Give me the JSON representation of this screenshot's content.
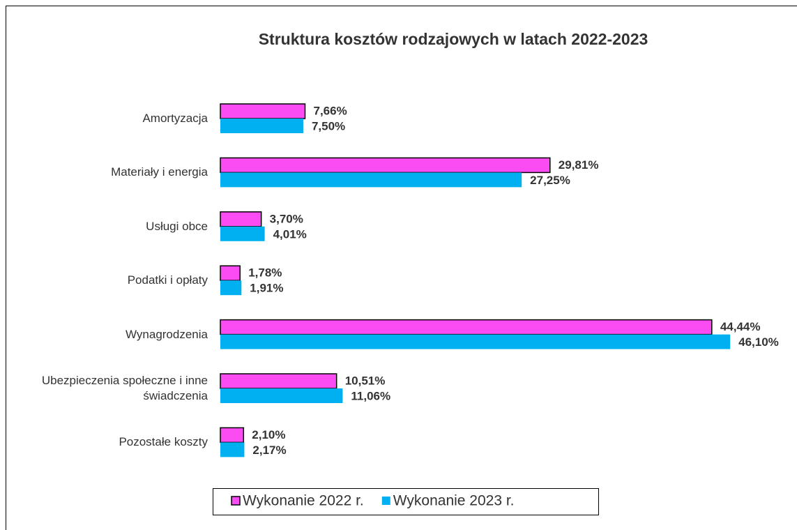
{
  "chart_data": {
    "type": "barh",
    "title": "Struktura kosztów rodzajowych w latach 2022-2023",
    "categories": [
      "Amortyzacja",
      "Materiały i energia",
      "Usługi obce",
      "Podatki i opłaty",
      "Wynagrodzenia",
      "Ubezpieczenia społeczne i inne świadczenia",
      "Pozostałe koszty"
    ],
    "series": [
      {
        "name": "Wykonanie 2022 r.",
        "color": "#fa4cf2",
        "values": [
          7.66,
          29.81,
          3.7,
          1.78,
          44.44,
          10.51,
          2.1
        ],
        "value_labels": [
          "7,66%",
          "29,81%",
          "3,70%",
          "1,78%",
          "44,44%",
          "10,51%",
          "2,10%"
        ]
      },
      {
        "name": "Wykonanie 2023 r.",
        "color": "#00b0f0",
        "values": [
          7.5,
          27.25,
          4.01,
          1.91,
          46.1,
          11.06,
          2.17
        ],
        "value_labels": [
          "7,50%",
          "27,25%",
          "4,01%",
          "1,91%",
          "46,10%",
          "11,06%",
          "2,17%"
        ]
      }
    ],
    "xlim": [
      0,
      50
    ],
    "legend": "bottom"
  }
}
